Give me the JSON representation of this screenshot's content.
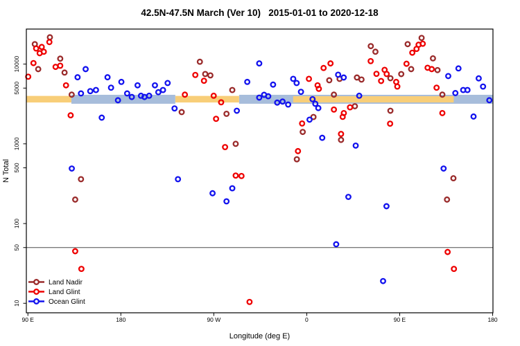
{
  "title": "42.5N-47.5N March (Ver 10)   2015-01-01 to 2020-12-18",
  "chart_data": {
    "type": "scatter",
    "title": "42.5N-47.5N March (Ver 10)   2015-01-01 to 2020-12-18",
    "xlabel": "Longitude (deg E)",
    "ylabel": "N Total",
    "x_axis": {
      "lim": [
        88.5,
        540.3
      ],
      "ticks": [
        {
          "lon": 90,
          "label": "90 E"
        },
        {
          "lon": 180,
          "label": "180"
        },
        {
          "lon": 270,
          "label": "90 W"
        },
        {
          "lon": 360,
          "label": "0"
        },
        {
          "lon": 450,
          "label": "90 E"
        },
        {
          "lon": 540,
          "label": "180"
        }
      ]
    },
    "y_axis": {
      "scale": "log",
      "lim": [
        7.6,
        27500
      ],
      "ticks": [
        10,
        50,
        100,
        500,
        1000,
        5000,
        10000
      ]
    },
    "grid": false,
    "legend_position": "bottom-left",
    "reference_line": {
      "value": 50,
      "color": "#4d4d4d"
    },
    "bands": [
      {
        "color": "#A7BDDB",
        "lon": [
          294.5,
          540.3
        ],
        "value": [
          3180,
          4120
        ]
      },
      {
        "color": "#F8CE78",
        "lon": [
          88.5,
          132.1
        ],
        "value": [
          3300,
          3990
        ]
      },
      {
        "color": "#F8CE78",
        "lon": [
          232.7,
          294.5
        ],
        "value": [
          3300,
          3990
        ]
      },
      {
        "color": "#A7BDDB",
        "lon": [
          132.1,
          232.7
        ],
        "value": [
          3180,
          4120
        ]
      },
      {
        "color": "#F8CE78",
        "lon": [
          346.8,
          502.3
        ],
        "value": [
          3300,
          3960
        ]
      }
    ],
    "series": [
      {
        "name": "Land Nadir",
        "color": "#9A2B2B",
        "points": [
          [
            96.7,
            17800
          ],
          [
            111.3,
            21700
          ],
          [
            100,
            8650
          ],
          [
            121.3,
            11700
          ],
          [
            125.5,
            7830
          ],
          [
            132.4,
            4140
          ],
          [
            141.4,
            360
          ],
          [
            135.8,
            200
          ],
          [
            256.5,
            10700
          ],
          [
            261.7,
            7510
          ],
          [
            266.7,
            7220
          ],
          [
            238.9,
            2500
          ],
          [
            282.3,
            2380
          ],
          [
            287.9,
            4730
          ],
          [
            291.2,
            1000
          ],
          [
            350.4,
            640
          ],
          [
            356.1,
            1410
          ],
          [
            366.5,
            2170
          ],
          [
            381.8,
            6270
          ],
          [
            386.3,
            4140
          ],
          [
            391.8,
            6530
          ],
          [
            393.2,
            1120
          ],
          [
            406.6,
            2960
          ],
          [
            408.6,
            6790
          ],
          [
            413,
            6400
          ],
          [
            422,
            16800
          ],
          [
            426.5,
            14300
          ],
          [
            441,
            6650
          ],
          [
            441,
            2600
          ],
          [
            451.5,
            7500
          ],
          [
            457.7,
            17800
          ],
          [
            461.1,
            8650
          ],
          [
            471.2,
            21300
          ],
          [
            482.2,
            11800
          ],
          [
            486.6,
            8410
          ],
          [
            491.3,
            4140
          ],
          [
            502,
            370
          ],
          [
            495.8,
            200
          ]
        ]
      },
      {
        "name": "Land Glint",
        "color": "#EE0000",
        "points": [
          [
            98,
            15700
          ],
          [
            103.4,
            16400
          ],
          [
            110.8,
            18900
          ],
          [
            105.4,
            14300
          ],
          [
            101.4,
            13700
          ],
          [
            95.4,
            10300
          ],
          [
            90.3,
            6950
          ],
          [
            116.8,
            9230
          ],
          [
            121.3,
            9550
          ],
          [
            126.9,
            5420
          ],
          [
            131.4,
            2280
          ],
          [
            135.8,
            45
          ],
          [
            141.8,
            27
          ],
          [
            242,
            4140
          ],
          [
            252.1,
            7310
          ],
          [
            260.5,
            6180
          ],
          [
            272.2,
            2060
          ],
          [
            269.9,
            4010
          ],
          [
            277.1,
            3320
          ],
          [
            280.9,
            910
          ],
          [
            291.2,
            400
          ],
          [
            296.8,
            395
          ],
          [
            304.6,
            10.4
          ],
          [
            351.5,
            810
          ],
          [
            355.5,
            1800
          ],
          [
            362.1,
            6530
          ],
          [
            370.5,
            5420
          ],
          [
            371.7,
            4900
          ],
          [
            376.3,
            8940
          ],
          [
            383,
            10200
          ],
          [
            386.3,
            2690
          ],
          [
            395.9,
            2430
          ],
          [
            394.8,
            2180
          ],
          [
            393.2,
            1330
          ],
          [
            401.9,
            2870
          ],
          [
            427.5,
            7550
          ],
          [
            421.9,
            10900
          ],
          [
            432,
            6140
          ],
          [
            435.4,
            8470
          ],
          [
            437.4,
            7510
          ],
          [
            446.6,
            5980
          ],
          [
            447.7,
            5230
          ],
          [
            456.6,
            10100
          ],
          [
            462.2,
            13900
          ],
          [
            466.3,
            15500
          ],
          [
            468.3,
            17500
          ],
          [
            472.3,
            18000
          ],
          [
            477,
            9000
          ],
          [
            481,
            8650
          ],
          [
            485.7,
            5060
          ],
          [
            491.3,
            2430
          ],
          [
            440.7,
            1790
          ],
          [
            496.4,
            44
          ],
          [
            502.5,
            27
          ]
        ]
      },
      {
        "name": "Ocean Glint",
        "color": "#1212EE",
        "points": [
          [
            138.1,
            6840
          ],
          [
            145.9,
            8650
          ],
          [
            141.4,
            4290
          ],
          [
            150.4,
            4580
          ],
          [
            155.9,
            4730
          ],
          [
            167.1,
            6840
          ],
          [
            170.5,
            5060
          ],
          [
            180.5,
            5980
          ],
          [
            177.2,
            3520
          ],
          [
            186.1,
            4290
          ],
          [
            190.6,
            3870
          ],
          [
            196.2,
            5420
          ],
          [
            199.5,
            4010
          ],
          [
            202.9,
            3870
          ],
          [
            207.4,
            4010
          ],
          [
            213,
            5420
          ],
          [
            216.3,
            4440
          ],
          [
            220.8,
            4730
          ],
          [
            225.3,
            5790
          ],
          [
            232,
            2780
          ],
          [
            161.5,
            2130
          ],
          [
            132.5,
            490
          ],
          [
            235.3,
            360
          ],
          [
            268.8,
            240
          ],
          [
            287.9,
            277
          ],
          [
            282.3,
            190
          ],
          [
            292.3,
            2600
          ],
          [
            302.4,
            5980
          ],
          [
            314,
            10200
          ],
          [
            314,
            3800
          ],
          [
            318.7,
            4120
          ],
          [
            322.7,
            3950
          ],
          [
            327.4,
            5530
          ],
          [
            331.4,
            3290
          ],
          [
            336.6,
            3390
          ],
          [
            342,
            3110
          ],
          [
            346.9,
            6530
          ],
          [
            350.2,
            5790
          ],
          [
            354.4,
            4490
          ],
          [
            362.7,
            2010
          ],
          [
            365.6,
            3630
          ],
          [
            368.3,
            3180
          ],
          [
            371.2,
            2810
          ],
          [
            375,
            1190
          ],
          [
            390.4,
            7360
          ],
          [
            395.8,
            6790
          ],
          [
            410.8,
            4010
          ],
          [
            407.4,
            950
          ],
          [
            400.3,
            216
          ],
          [
            437.2,
            165
          ],
          [
            388.5,
            55
          ],
          [
            433.9,
            19
          ],
          [
            492.5,
            490
          ],
          [
            506.9,
            8830
          ],
          [
            497,
            7080
          ],
          [
            503.9,
            4330
          ],
          [
            511.5,
            4730
          ],
          [
            515.6,
            4730
          ],
          [
            526.5,
            6620
          ],
          [
            530.7,
            5230
          ],
          [
            536.8,
            3520
          ],
          [
            521.5,
            2200
          ]
        ]
      }
    ]
  },
  "colors": {
    "background": "#ffffff",
    "plot_border": "#000000",
    "band_yellow": "#F8CE78",
    "band_blue": "#A7BDDB",
    "reference_line": "#4d4d4d",
    "land_nadir": "#9A2B2B",
    "land_glint": "#EE0000",
    "ocean_glint": "#1212EE"
  }
}
